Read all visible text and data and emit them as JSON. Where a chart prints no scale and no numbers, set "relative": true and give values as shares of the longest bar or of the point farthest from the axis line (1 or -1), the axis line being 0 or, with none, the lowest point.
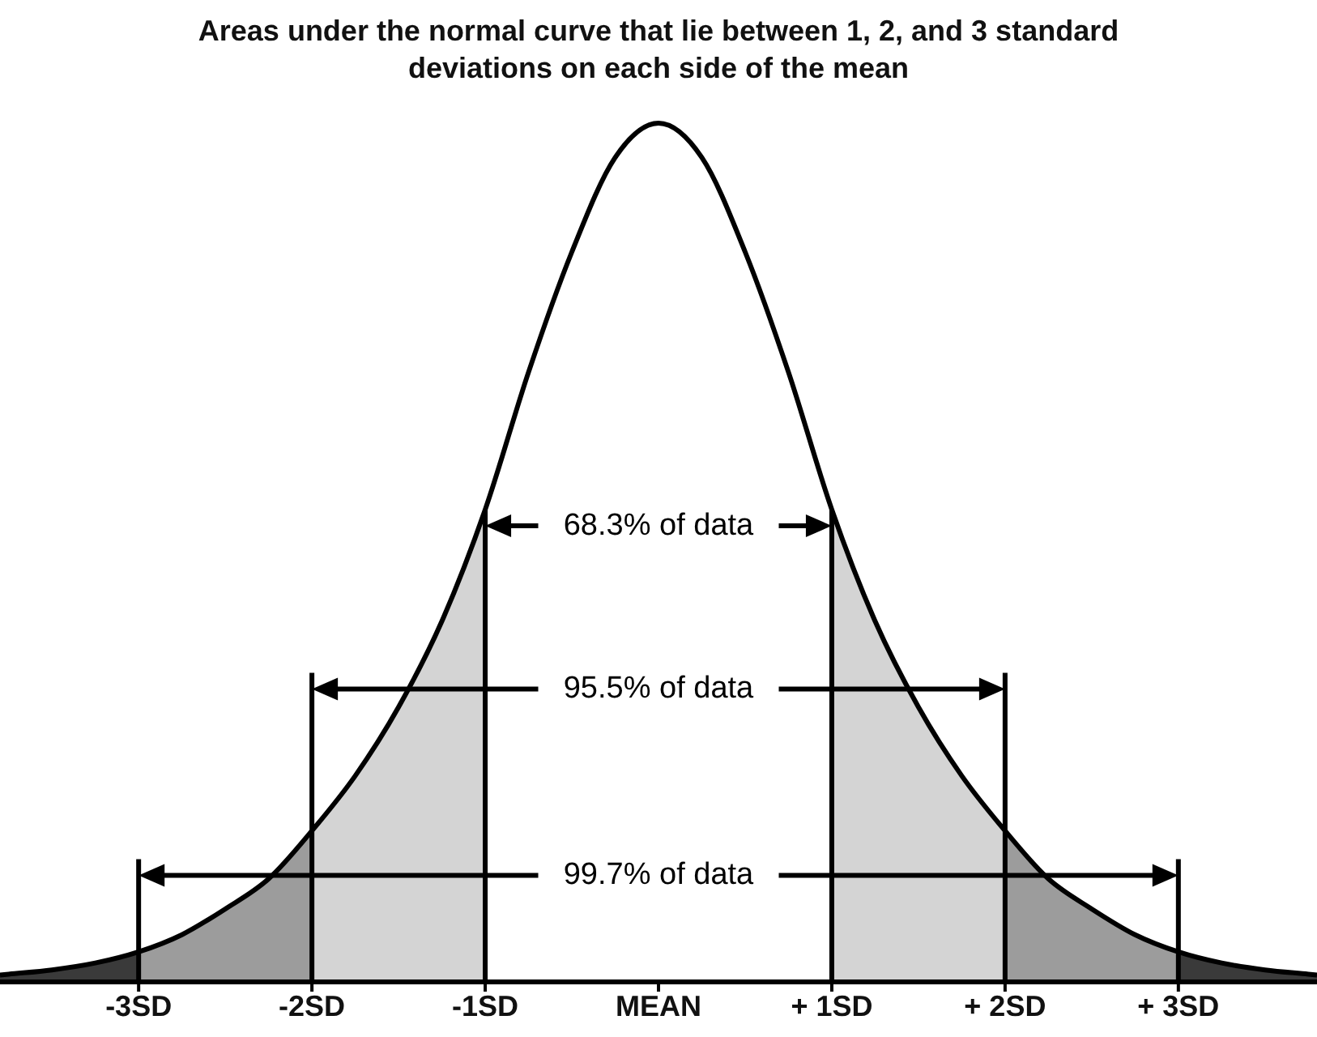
{
  "chart_data": {
    "type": "area",
    "title": "Areas under the normal curve that lie between 1, 2, and 3 standard deviations on each side of the mean",
    "relative": true,
    "xlim": [
      -3.8,
      3.8
    ],
    "xticks": [
      {
        "value": -3,
        "label": "-3SD"
      },
      {
        "value": -2,
        "label": "-2SD"
      },
      {
        "value": -1,
        "label": "-1SD"
      },
      {
        "value": 0,
        "label": "MEAN"
      },
      {
        "value": 1,
        "label": "+ 1SD"
      },
      {
        "value": 2,
        "label": "+ 2SD"
      },
      {
        "value": 3,
        "label": "+ 3SD"
      }
    ],
    "series": [
      {
        "color": "#3a3a3a",
        "x": [
          -3.8,
          -3.75,
          -3.5,
          -3.25,
          -3
        ],
        "values": [
          0.008,
          0.009,
          0.014,
          0.022,
          0.035
        ]
      },
      {
        "color": "#9c9c9c",
        "x": [
          -3,
          -2.75,
          -2.5,
          -2.25,
          -2
        ],
        "values": [
          0.035,
          0.055,
          0.085,
          0.12,
          0.176
        ]
      },
      {
        "color": "#d4d4d4",
        "x": [
          -2,
          -1.75,
          -1.5,
          -1.25,
          -1
        ],
        "values": [
          0.176,
          0.24,
          0.32,
          0.42,
          0.55
        ]
      },
      {
        "color": "#d4d4d4",
        "x": [
          1,
          1.25,
          1.5,
          1.75,
          2
        ],
        "values": [
          0.55,
          0.42,
          0.32,
          0.24,
          0.176
        ]
      },
      {
        "color": "#9c9c9c",
        "x": [
          2,
          2.25,
          2.5,
          2.75,
          3
        ],
        "values": [
          0.176,
          0.12,
          0.085,
          0.055,
          0.035
        ]
      },
      {
        "color": "#3a3a3a",
        "x": [
          3,
          3.25,
          3.5,
          3.75,
          3.8
        ],
        "values": [
          0.035,
          0.022,
          0.014,
          0.009,
          0.008
        ]
      },
      {
        "type": "line",
        "color": "#000000",
        "marker": "none",
        "x": [
          -3.8,
          -3.75,
          -3.5,
          -3.25,
          -3,
          -2.75,
          -2.5,
          -2.25,
          -2,
          -1.75,
          -1.5,
          -1.25,
          -1,
          -0.75,
          -0.5,
          -0.25,
          0,
          0.25,
          0.5,
          0.75,
          1,
          1.25,
          1.5,
          1.75,
          2,
          2.25,
          2.5,
          2.75,
          3,
          3.25,
          3.5,
          3.75,
          3.8
        ],
        "values": [
          0.008,
          0.009,
          0.014,
          0.022,
          0.035,
          0.055,
          0.085,
          0.12,
          0.176,
          0.24,
          0.32,
          0.42,
          0.55,
          0.71,
          0.85,
          0.96,
          1,
          0.96,
          0.85,
          0.71,
          0.55,
          0.42,
          0.32,
          0.24,
          0.176,
          0.12,
          0.085,
          0.055,
          0.035,
          0.022,
          0.014,
          0.009,
          0.008
        ]
      },
      {
        "type": "line",
        "color": "#000000",
        "marker": "none",
        "x": [
          -1,
          -1
        ],
        "values": [
          0,
          0.55
        ]
      },
      {
        "type": "line",
        "color": "#000000",
        "marker": "none",
        "x": [
          1,
          1
        ],
        "values": [
          0,
          0.55
        ]
      },
      {
        "type": "line",
        "color": "#000000",
        "marker": "none",
        "x": [
          -2,
          -2
        ],
        "values": [
          0,
          0.36
        ]
      },
      {
        "type": "line",
        "color": "#000000",
        "marker": "none",
        "x": [
          2,
          2
        ],
        "values": [
          0,
          0.36
        ]
      },
      {
        "type": "line",
        "color": "#000000",
        "marker": "none",
        "x": [
          -3,
          -3
        ],
        "values": [
          0,
          0.143
        ]
      },
      {
        "type": "line",
        "color": "#000000",
        "marker": "none",
        "x": [
          3,
          3
        ],
        "values": [
          0,
          0.143
        ]
      }
    ],
    "annotations": [
      "68.3% of data",
      "95.5% of data",
      "99.7% of data"
    ]
  }
}
